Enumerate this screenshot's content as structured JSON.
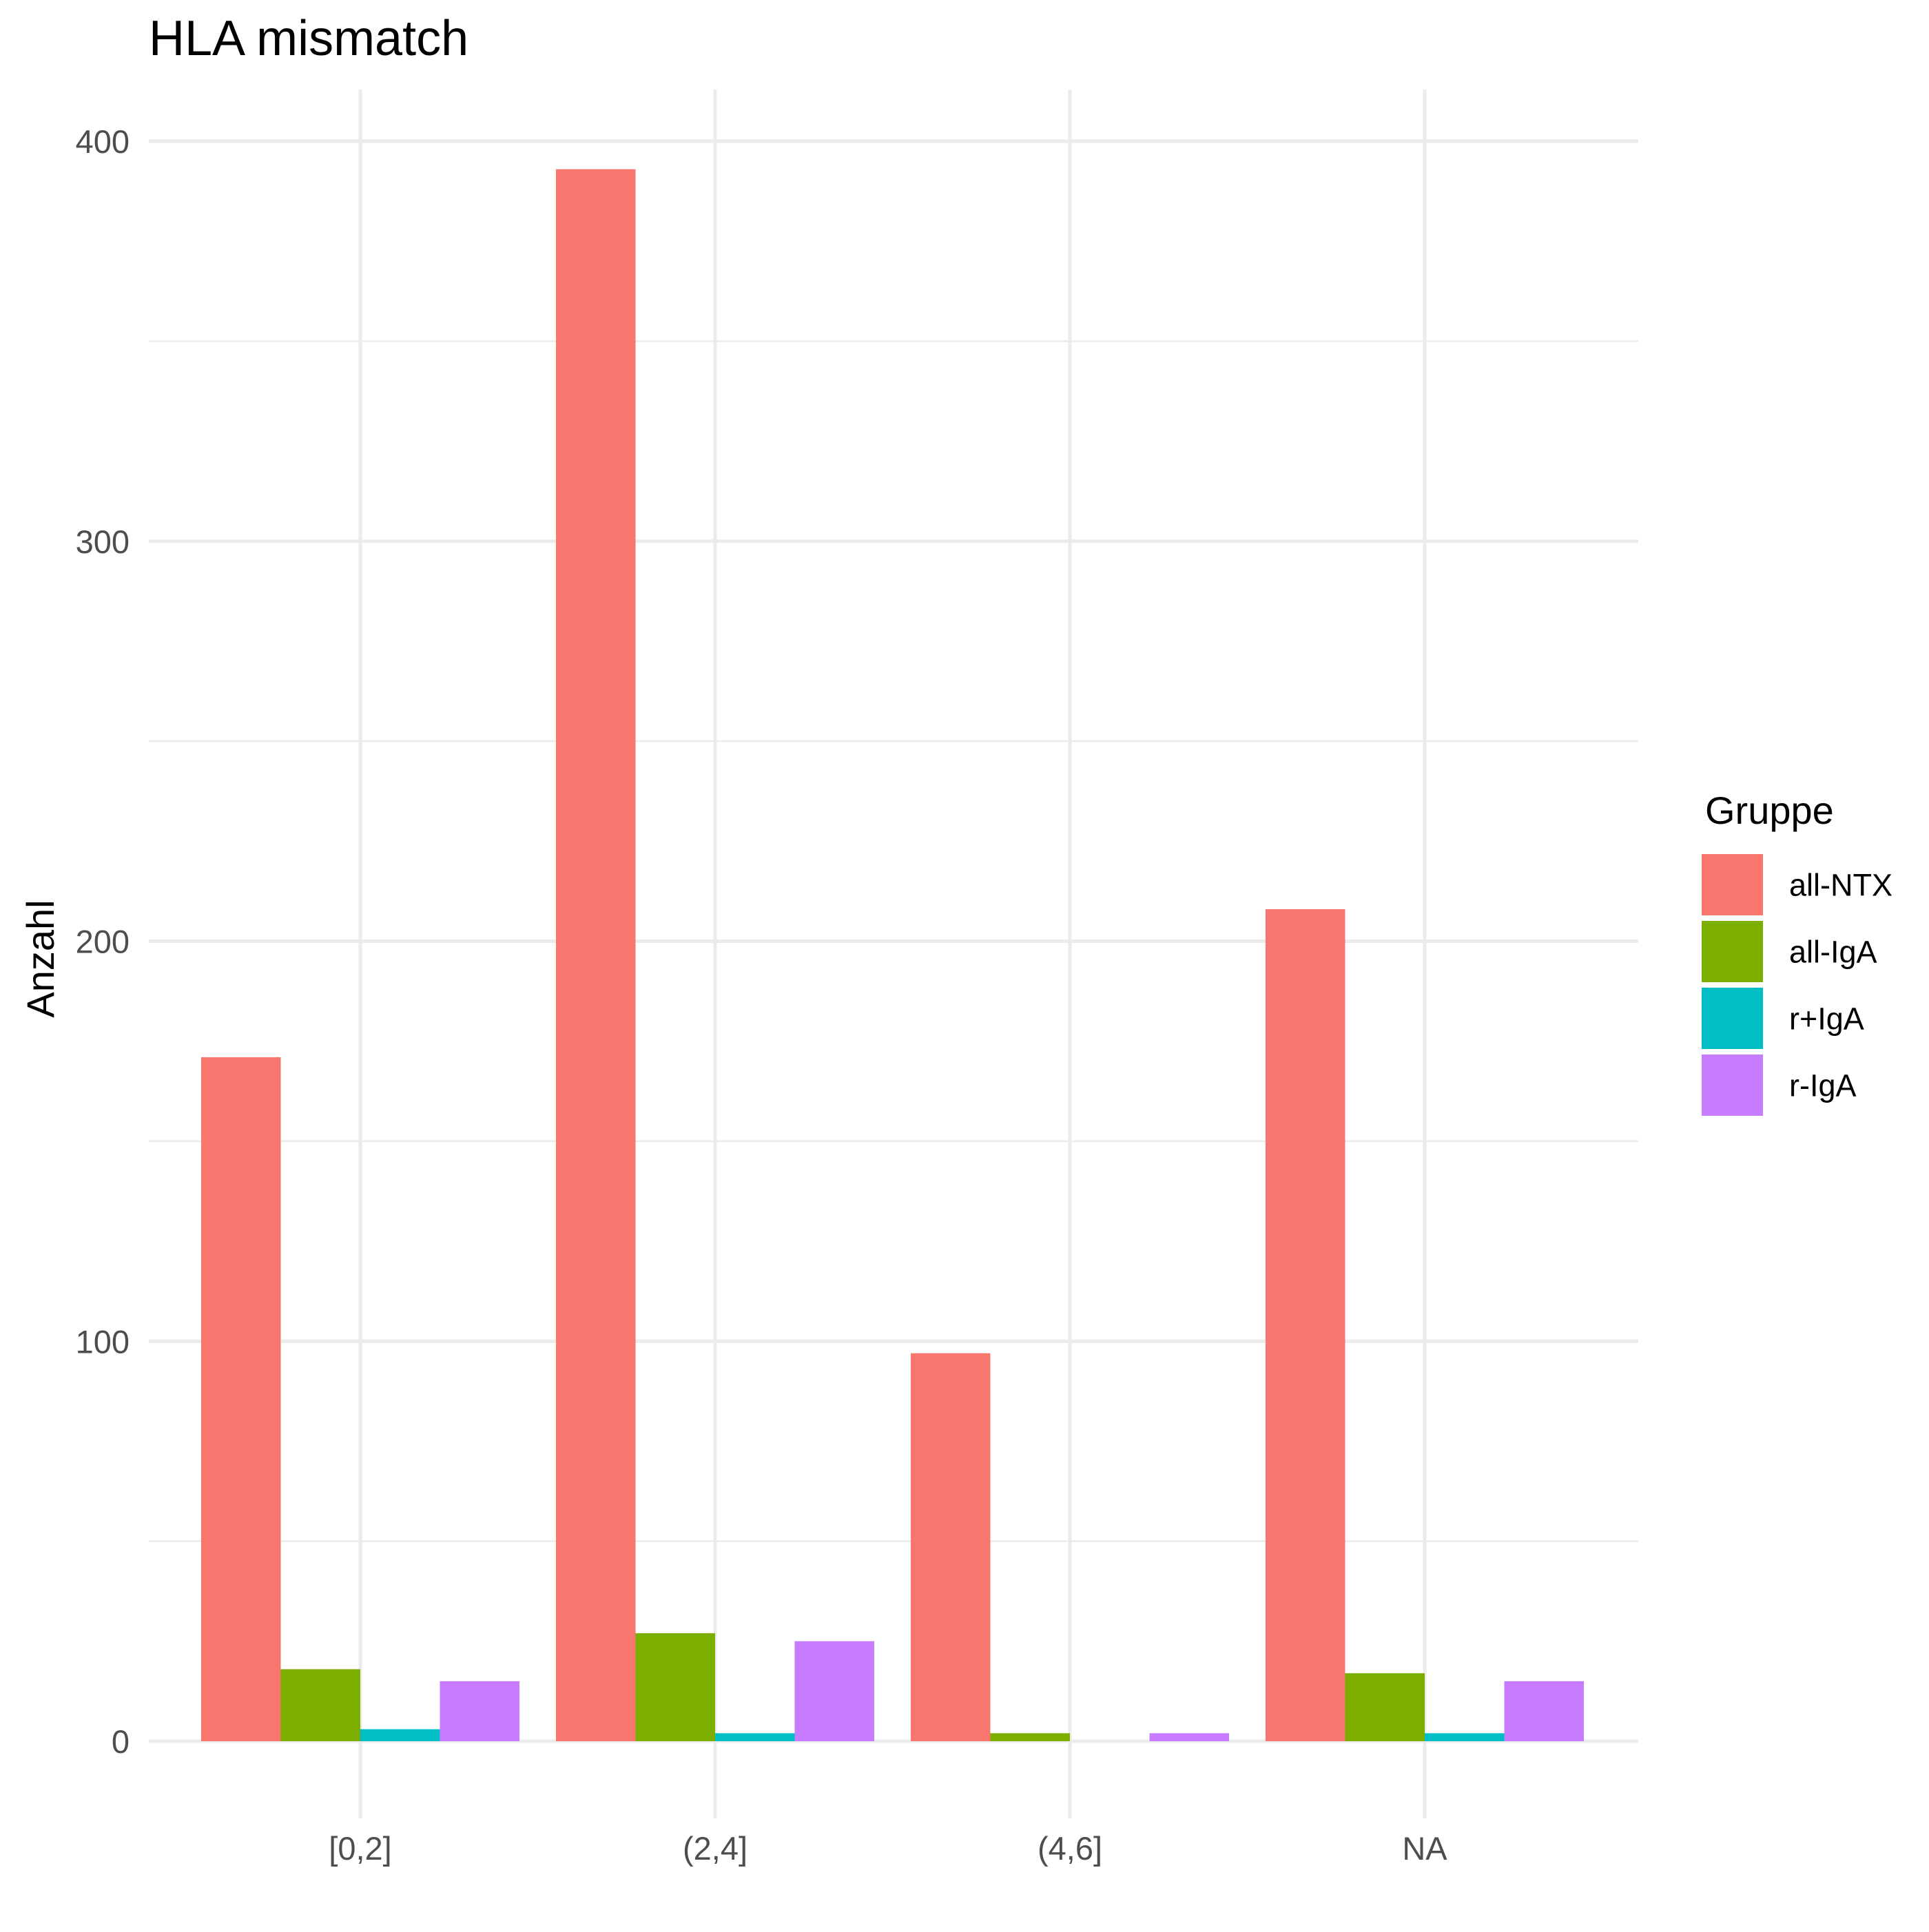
{
  "chart_data": {
    "type": "bar",
    "title": "HLA mismatch",
    "xlabel": "",
    "ylabel": "Anzahl",
    "categories": [
      "[0,2]",
      "(2,4]",
      "(4,6]",
      "NA"
    ],
    "ylim": [
      -18,
      412
    ],
    "yticks": [
      0,
      100,
      200,
      300,
      400
    ],
    "grid": true,
    "legend": {
      "title": "Gruppe",
      "position": "right"
    },
    "series": [
      {
        "name": "all-NTX",
        "color": "#F8766D",
        "values": [
          171,
          393,
          97,
          208
        ]
      },
      {
        "name": "all-IgA",
        "color": "#7CAE00",
        "values": [
          18,
          27,
          2,
          17
        ]
      },
      {
        "name": "r+IgA",
        "color": "#00BFC4",
        "values": [
          3,
          2,
          0,
          2
        ]
      },
      {
        "name": "r-IgA",
        "color": "#C77CFF",
        "values": [
          15,
          25,
          2,
          15
        ]
      }
    ]
  }
}
